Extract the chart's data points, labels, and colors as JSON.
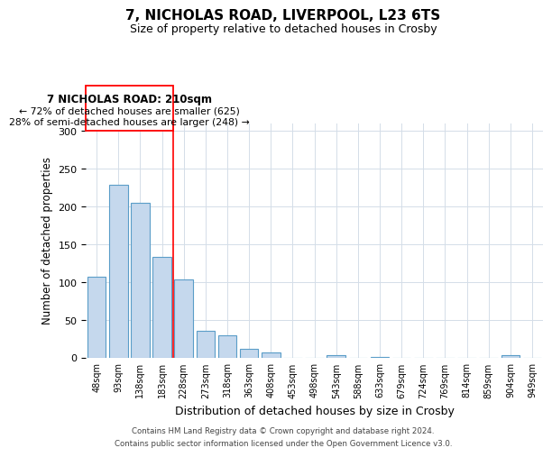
{
  "title_line1": "7, NICHOLAS ROAD, LIVERPOOL, L23 6TS",
  "title_line2": "Size of property relative to detached houses in Crosby",
  "xlabel": "Distribution of detached houses by size in Crosby",
  "ylabel": "Number of detached properties",
  "bar_labels": [
    "48sqm",
    "93sqm",
    "138sqm",
    "183sqm",
    "228sqm",
    "273sqm",
    "318sqm",
    "363sqm",
    "408sqm",
    "453sqm",
    "498sqm",
    "543sqm",
    "588sqm",
    "633sqm",
    "679sqm",
    "724sqm",
    "769sqm",
    "814sqm",
    "859sqm",
    "904sqm",
    "949sqm"
  ],
  "bar_values": [
    107,
    229,
    205,
    134,
    104,
    36,
    30,
    12,
    7,
    0,
    0,
    3,
    0,
    1,
    0,
    0,
    0,
    0,
    0,
    4,
    0
  ],
  "bar_color": "#c5d8ed",
  "bar_edge_color": "#5a9dc8",
  "redline_x": 3.5,
  "ylim": [
    0,
    310
  ],
  "yticks": [
    0,
    50,
    100,
    150,
    200,
    250,
    300
  ],
  "annotation_title": "7 NICHOLAS ROAD: 210sqm",
  "annotation_line1": "← 72% of detached houses are smaller (625)",
  "annotation_line2": "28% of semi-detached houses are larger (248) →",
  "footer_line1": "Contains HM Land Registry data © Crown copyright and database right 2024.",
  "footer_line2": "Contains public sector information licensed under the Open Government Licence v3.0.",
  "background_color": "#ffffff",
  "grid_color": "#d4dde8"
}
